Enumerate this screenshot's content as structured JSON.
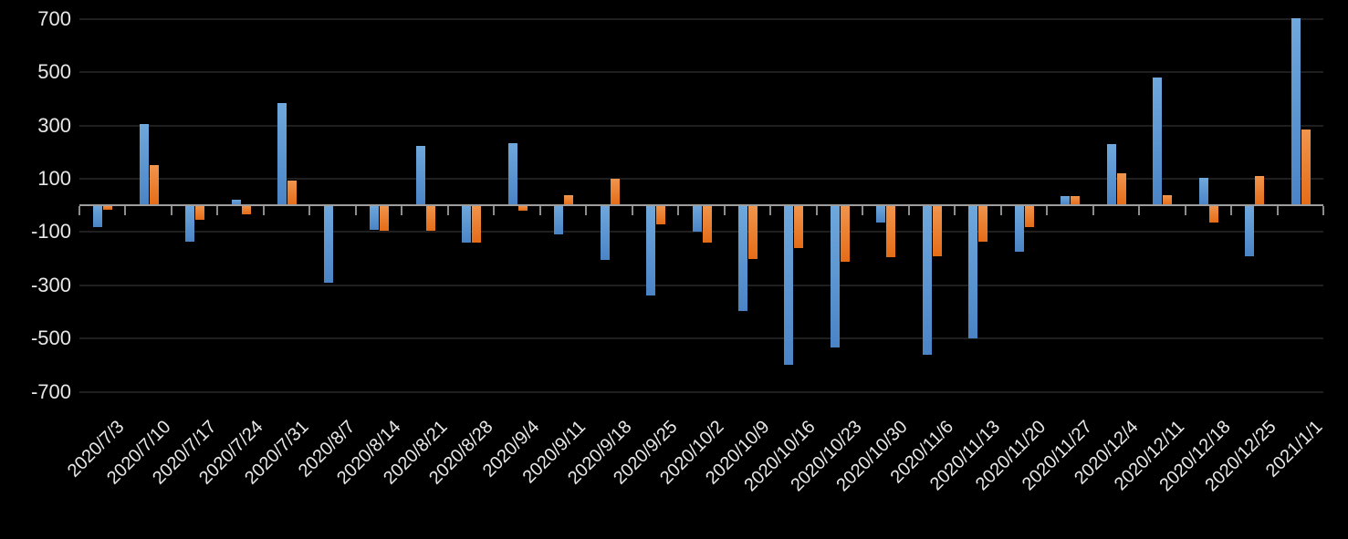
{
  "chart_data": {
    "type": "bar",
    "title": "",
    "legend_position": "none",
    "grid": true,
    "background_color": "#000000",
    "axis_color": "#9e9e9e",
    "gridline_color": "#1f1f1f",
    "label_color": "#e8e8e8",
    "ylim": [
      -700,
      700
    ],
    "yticks": [
      700,
      500,
      300,
      100,
      -100,
      -300,
      -500,
      -700
    ],
    "categories": [
      "2020/7/3",
      "2020/7/10",
      "2020/7/17",
      "2020/7/24",
      "2020/7/31",
      "2020/8/7",
      "2020/8/14",
      "2020/8/21",
      "2020/8/28",
      "2020/9/4",
      "2020/9/11",
      "2020/9/18",
      "2020/9/25",
      "2020/10/2",
      "2020/10/9",
      "2020/10/16",
      "2020/10/23",
      "2020/10/30",
      "2020/11/6",
      "2020/11/13",
      "2020/11/20",
      "2020/11/27",
      "2020/12/4",
      "2020/12/11",
      "2020/12/18",
      "2020/12/25",
      "2021/1/1"
    ],
    "series": [
      {
        "name": "blue",
        "color_top": "#6fa8dc",
        "color_bottom": "#4a84c6",
        "values": [
          -80,
          305,
          -135,
          20,
          385,
          -290,
          -90,
          225,
          -140,
          235,
          -110,
          -205,
          -340,
          -100,
          -395,
          -600,
          -535,
          -65,
          -560,
          -500,
          -175,
          35,
          230,
          480,
          105,
          -190,
          705
        ]
      },
      {
        "name": "orange",
        "color_top": "#f0954d",
        "color_bottom": "#e56c17",
        "values": [
          -15,
          150,
          -55,
          -35,
          95,
          0,
          -95,
          -95,
          -140,
          -20,
          40,
          100,
          -70,
          -140,
          -200,
          -160,
          -210,
          -195,
          -190,
          -135,
          -80,
          35,
          120,
          40,
          -65,
          110,
          285
        ]
      }
    ]
  }
}
